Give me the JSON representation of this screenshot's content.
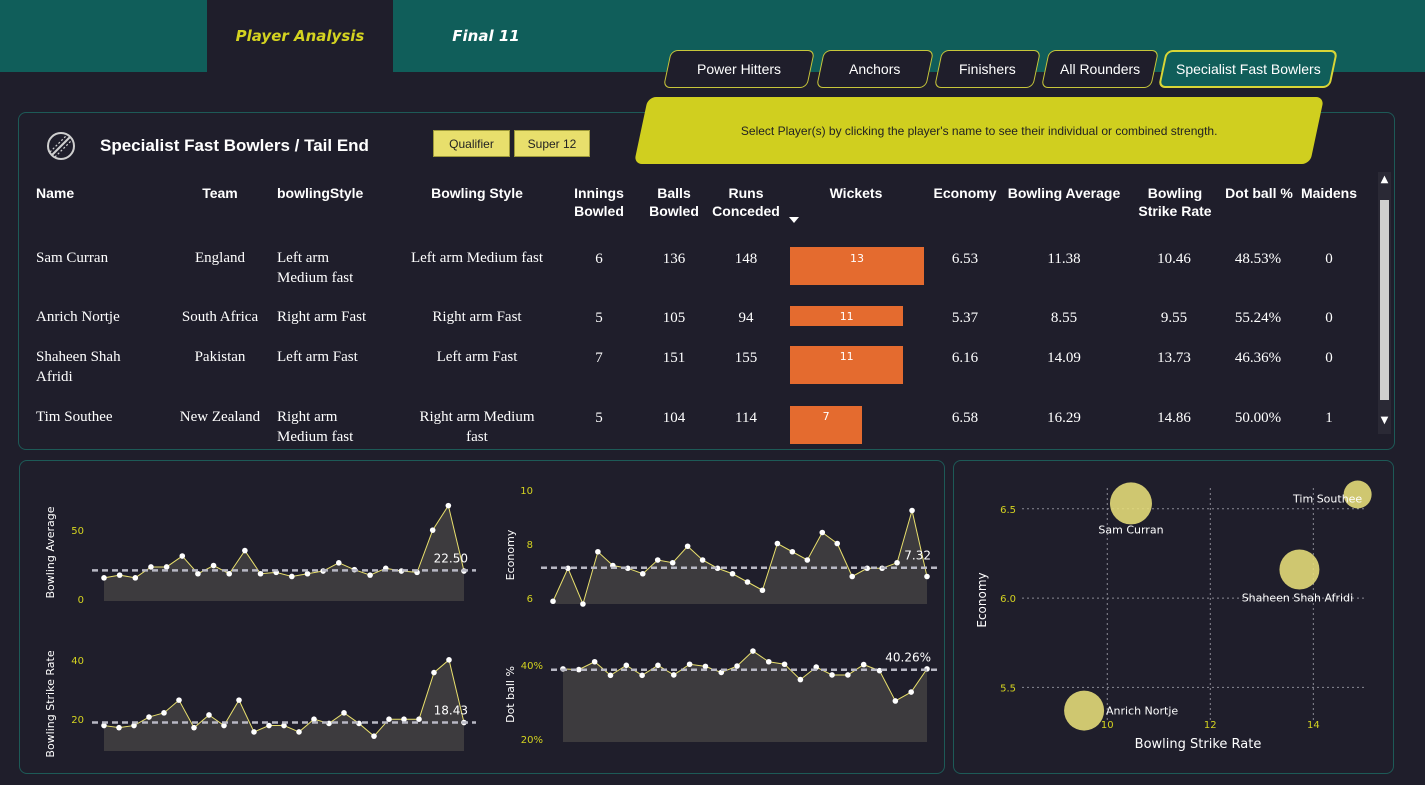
{
  "tabs": {
    "player_analysis": "Player Analysis",
    "final_11": "Final 11"
  },
  "segments": [
    "Power Hitters",
    "Anchors",
    "Finishers",
    "All Rounders",
    "Specialist Fast Bowlers"
  ],
  "active_segment": "Specialist Fast Bowlers",
  "banner": "Select Player(s) by clicking the player's name to see their individual or combined strength.",
  "section_title": "Specialist Fast Bowlers / Tail End",
  "filters": {
    "qualifier": "Qualifier",
    "super12": "Super 12"
  },
  "icon": "cricket-ball-icon",
  "columns": {
    "name": "Name",
    "team": "Team",
    "bowlingStyle": "bowlingStyle",
    "bowling_style": "Bowling Style",
    "innings": [
      "Innings",
      "Bowled"
    ],
    "balls": [
      "Balls",
      "Bowled"
    ],
    "runs": [
      "Runs",
      "Conceded"
    ],
    "wickets": "Wickets",
    "economy": "Economy",
    "bowling_average": "Bowling Average",
    "strike_rate": [
      "Bowling",
      "Strike Rate"
    ],
    "dot_ball": "Dot ball %",
    "maidens": "Maidens"
  },
  "rows": [
    {
      "name": [
        "Sam Curran"
      ],
      "team": "England",
      "style1": [
        "Left arm",
        "Medium fast"
      ],
      "style2": [
        "Left arm Medium fast"
      ],
      "innings": "6",
      "balls": "136",
      "runs": "148",
      "wickets": "13",
      "economy": "6.53",
      "average": "11.38",
      "strike_rate": "10.46",
      "dot": "48.53%",
      "maidens": "0"
    },
    {
      "name": [
        "Anrich Nortje"
      ],
      "team": "South Africa",
      "style1": [
        "Right arm Fast"
      ],
      "style2": [
        "Right arm Fast"
      ],
      "innings": "5",
      "balls": "105",
      "runs": "94",
      "wickets": "11",
      "economy": "5.37",
      "average": "8.55",
      "strike_rate": "9.55",
      "dot": "55.24%",
      "maidens": "0"
    },
    {
      "name": [
        "Shaheen Shah",
        "Afridi"
      ],
      "team": "Pakistan",
      "style1": [
        "Left arm Fast"
      ],
      "style2": [
        "Left arm Fast"
      ],
      "innings": "7",
      "balls": "151",
      "runs": "155",
      "wickets": "11",
      "economy": "6.16",
      "average": "14.09",
      "strike_rate": "13.73",
      "dot": "46.36%",
      "maidens": "0"
    },
    {
      "name": [
        "Tim Southee"
      ],
      "team": "New Zealand",
      "style1": [
        "Right arm",
        "Medium fast"
      ],
      "style2": [
        "Right arm Medium",
        "fast"
      ],
      "innings": "5",
      "balls": "104",
      "runs": "114",
      "wickets": "7",
      "economy": "6.58",
      "average": "16.29",
      "strike_rate": "14.86",
      "dot": "50.00%",
      "maidens": "1"
    }
  ],
  "colors": {
    "accent": "#d4d320",
    "teal": "#105e5a",
    "bar": "#e46b2f",
    "line": "#e8df6c",
    "bubble": "#e8df7a"
  },
  "chart_data": [
    {
      "type": "line",
      "ylabel": "Bowling Average",
      "yticks": [
        "50",
        "0"
      ],
      "ylim": [
        0,
        80
      ],
      "values": [
        17,
        19,
        17,
        25,
        25,
        33,
        20,
        26,
        20,
        37,
        20,
        21,
        18,
        20,
        22,
        28,
        23,
        19,
        24,
        22,
        21,
        52,
        70,
        22
      ],
      "avg_label": "22.50",
      "avg": 22.5
    },
    {
      "type": "line",
      "ylabel": "Economy",
      "yticks": [
        "10",
        "8",
        "6"
      ],
      "ylim": [
        6,
        10
      ],
      "values": [
        6.1,
        7.3,
        6.0,
        7.9,
        7.4,
        7.3,
        7.1,
        7.6,
        7.5,
        8.1,
        7.6,
        7.3,
        7.1,
        6.8,
        6.5,
        8.2,
        7.9,
        7.6,
        8.6,
        8.2,
        7.0,
        7.3,
        7.3,
        7.5,
        9.4,
        7.0
      ],
      "avg_label": "7.32",
      "avg": 7.32
    },
    {
      "type": "line",
      "ylabel": "Bowling Strike Rate",
      "yticks": [
        "40",
        "20"
      ],
      "ylim": [
        5,
        55
      ],
      "values": [
        17,
        16,
        17,
        21,
        23,
        29,
        16,
        22,
        17,
        29,
        14,
        17,
        17,
        14,
        20,
        18,
        23,
        18,
        12,
        20,
        20,
        20,
        42,
        48,
        18.43
      ],
      "avg_label": "18.43",
      "avg": 18.43
    },
    {
      "type": "line",
      "ylabel": "Dot ball %",
      "yticks": [
        "40%",
        "20%"
      ],
      "ylim": [
        20,
        50
      ],
      "values": [
        40.5,
        40.3,
        42.5,
        38.7,
        41.5,
        38.7,
        41.5,
        38.8,
        41.8,
        41.2,
        39.5,
        41.3,
        45.5,
        42.5,
        41.8,
        37.5,
        41,
        38.8,
        38.8,
        41.7,
        40,
        31.5,
        34,
        40.5
      ],
      "avg_label": "40.26%",
      "avg": 40.26
    },
    {
      "type": "scatter",
      "xlabel": "Bowling Strike Rate",
      "ylabel": "Economy",
      "xticks": [
        "10",
        "12",
        "14"
      ],
      "yticks": [
        "6.5",
        "6.0",
        "5.5"
      ],
      "xlim": [
        8.5,
        15.1
      ],
      "ylim": [
        5.25,
        6.65
      ],
      "points": [
        {
          "label": "Sam Curran",
          "x": 10.46,
          "y": 6.53,
          "r": 21
        },
        {
          "label": "Anrich Nortje",
          "x": 9.55,
          "y": 5.37,
          "r": 20
        },
        {
          "label": "Shaheen Shah Afridi",
          "x": 13.73,
          "y": 6.16,
          "r": 20
        },
        {
          "label": "Tim Southee",
          "x": 14.86,
          "y": 6.58,
          "r": 14
        }
      ]
    }
  ]
}
